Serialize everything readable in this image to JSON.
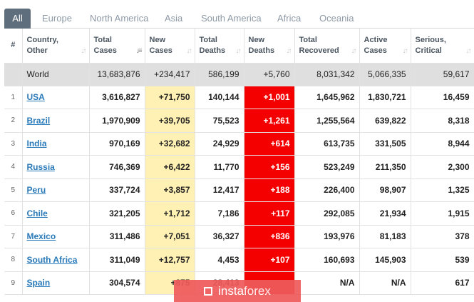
{
  "tabs": [
    "All",
    "Europe",
    "North America",
    "Asia",
    "South America",
    "Africa",
    "Oceania"
  ],
  "columns": [
    {
      "line1": "#",
      "line2": ""
    },
    {
      "line1": "Country,",
      "line2": "Other"
    },
    {
      "line1": "Total",
      "line2": "Cases"
    },
    {
      "line1": "New",
      "line2": "Cases"
    },
    {
      "line1": "Total",
      "line2": "Deaths"
    },
    {
      "line1": "New",
      "line2": "Deaths"
    },
    {
      "line1": "Total",
      "line2": "Recovered"
    },
    {
      "line1": "Active",
      "line2": "Cases"
    },
    {
      "line1": "Serious,",
      "line2": "Critical"
    }
  ],
  "world": {
    "country": "World",
    "total_cases": "13,683,876",
    "new_cases": "+234,417",
    "total_deaths": "586,199",
    "new_deaths": "+5,760",
    "total_recovered": "8,031,342",
    "active_cases": "5,066,335",
    "serious": "59,617"
  },
  "rows": [
    {
      "idx": "1",
      "country": "USA",
      "total_cases": "3,616,827",
      "new_cases": "+71,750",
      "total_deaths": "140,144",
      "new_deaths": "+1,001",
      "total_recovered": "1,645,962",
      "active_cases": "1,830,721",
      "serious": "16,459"
    },
    {
      "idx": "2",
      "country": "Brazil",
      "total_cases": "1,970,909",
      "new_cases": "+39,705",
      "total_deaths": "75,523",
      "new_deaths": "+1,261",
      "total_recovered": "1,255,564",
      "active_cases": "639,822",
      "serious": "8,318"
    },
    {
      "idx": "3",
      "country": "India",
      "total_cases": "970,169",
      "new_cases": "+32,682",
      "total_deaths": "24,929",
      "new_deaths": "+614",
      "total_recovered": "613,735",
      "active_cases": "331,505",
      "serious": "8,944"
    },
    {
      "idx": "4",
      "country": "Russia",
      "total_cases": "746,369",
      "new_cases": "+6,422",
      "total_deaths": "11,770",
      "new_deaths": "+156",
      "total_recovered": "523,249",
      "active_cases": "211,350",
      "serious": "2,300"
    },
    {
      "idx": "5",
      "country": "Peru",
      "total_cases": "337,724",
      "new_cases": "+3,857",
      "total_deaths": "12,417",
      "new_deaths": "+188",
      "total_recovered": "226,400",
      "active_cases": "98,907",
      "serious": "1,325"
    },
    {
      "idx": "6",
      "country": "Chile",
      "total_cases": "321,205",
      "new_cases": "+1,712",
      "total_deaths": "7,186",
      "new_deaths": "+117",
      "total_recovered": "292,085",
      "active_cases": "21,934",
      "serious": "1,915"
    },
    {
      "idx": "7",
      "country": "Mexico",
      "total_cases": "311,486",
      "new_cases": "+7,051",
      "total_deaths": "36,327",
      "new_deaths": "+836",
      "total_recovered": "193,976",
      "active_cases": "81,183",
      "serious": "378"
    },
    {
      "idx": "8",
      "country": "South Africa",
      "total_cases": "311,049",
      "new_cases": "+12,757",
      "total_deaths": "4,453",
      "new_deaths": "+107",
      "total_recovered": "160,693",
      "active_cases": "145,903",
      "serious": "539"
    },
    {
      "idx": "9",
      "country": "Spain",
      "total_cases": "304,574",
      "new_cases": "+875",
      "total_deaths": "28,413",
      "new_deaths": "",
      "total_recovered": "N/A",
      "active_cases": "N/A",
      "serious": "617"
    }
  ],
  "watermark": "instaforex",
  "colors": {
    "tab_active": "#5f6e7c",
    "new_cases_bg": "#fff0b3",
    "new_deaths_bg": "#f40000",
    "world_bg": "#dfdfdf",
    "link": "#2a7ab9",
    "watermark_bg": "#ef5b5b"
  }
}
